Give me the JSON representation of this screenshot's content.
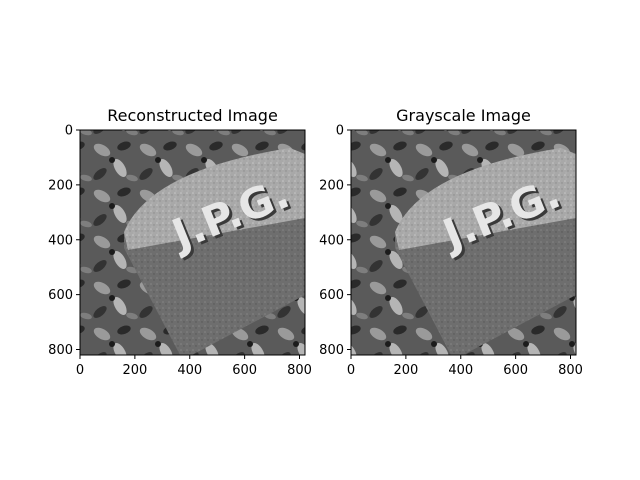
{
  "chart_data": [
    {
      "type": "image",
      "title": "Reconstructed Image",
      "xlim": [
        0,
        820
      ],
      "ylim": [
        820,
        0
      ],
      "x_ticks": [
        0,
        200,
        400,
        600,
        800
      ],
      "y_ticks": [
        0,
        200,
        400,
        600,
        800
      ],
      "colormap": "gray",
      "image_text": "J.P.G.",
      "grid": false
    },
    {
      "type": "image",
      "title": "Grayscale Image",
      "xlim": [
        0,
        820
      ],
      "ylim": [
        820,
        0
      ],
      "x_ticks": [
        0,
        200,
        400,
        600,
        800
      ],
      "y_ticks": [
        0,
        200,
        400,
        600,
        800
      ],
      "colormap": "gray",
      "image_text": "J.P.G.",
      "grid": false
    }
  ]
}
